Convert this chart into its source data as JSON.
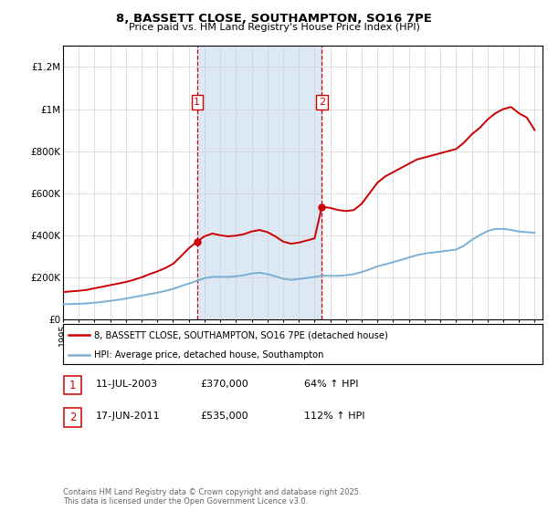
{
  "title_line1": "8, BASSETT CLOSE, SOUTHAMPTON, SO16 7PE",
  "title_line2": "Price paid vs. HM Land Registry's House Price Index (HPI)",
  "legend_line1": "8, BASSETT CLOSE, SOUTHAMPTON, SO16 7PE (detached house)",
  "legend_line2": "HPI: Average price, detached house, Southampton",
  "footnote": "Contains HM Land Registry data © Crown copyright and database right 2025.\nThis data is licensed under the Open Government Licence v3.0.",
  "transaction1_label": "1",
  "transaction1_date": "11-JUL-2003",
  "transaction1_price": "£370,000",
  "transaction1_hpi": "64% ↑ HPI",
  "transaction1_year": 2003.53,
  "transaction1_value": 370000,
  "transaction2_label": "2",
  "transaction2_date": "17-JUN-2011",
  "transaction2_price": "£535,000",
  "transaction2_hpi": "112% ↑ HPI",
  "transaction2_year": 2011.46,
  "transaction2_value": 535000,
  "property_color": "#cc0000",
  "hpi_color": "#7bafd4",
  "shaded_color": "#dce9f5",
  "transaction_vline_color": "#cc0000",
  "ylim_max": 1300000,
  "ylim_min": 0,
  "xlim_min": 1995,
  "xlim_max": 2025.5,
  "property_data_x": [
    1995.0,
    1995.5,
    1996.0,
    1996.5,
    1997.0,
    1997.5,
    1998.0,
    1998.5,
    1999.0,
    1999.5,
    2000.0,
    2000.5,
    2001.0,
    2001.5,
    2002.0,
    2002.5,
    2003.0,
    2003.53,
    2004.0,
    2004.5,
    2005.0,
    2005.5,
    2006.0,
    2006.5,
    2007.0,
    2007.5,
    2008.0,
    2008.5,
    2009.0,
    2009.5,
    2010.0,
    2010.5,
    2011.0,
    2011.46,
    2012.0,
    2012.5,
    2013.0,
    2013.5,
    2014.0,
    2014.5,
    2015.0,
    2015.5,
    2016.0,
    2016.5,
    2017.0,
    2017.5,
    2018.0,
    2018.5,
    2019.0,
    2019.5,
    2020.0,
    2020.5,
    2021.0,
    2021.5,
    2022.0,
    2022.5,
    2023.0,
    2023.5,
    2024.0,
    2024.5,
    2025.0
  ],
  "property_data_y": [
    130000,
    133000,
    136000,
    140000,
    148000,
    155000,
    163000,
    170000,
    178000,
    188000,
    200000,
    215000,
    228000,
    244000,
    264000,
    300000,
    338000,
    370000,
    395000,
    408000,
    400000,
    395000,
    398000,
    405000,
    418000,
    425000,
    415000,
    395000,
    370000,
    360000,
    365000,
    375000,
    385000,
    535000,
    530000,
    520000,
    515000,
    520000,
    550000,
    600000,
    650000,
    680000,
    700000,
    720000,
    740000,
    760000,
    770000,
    780000,
    790000,
    800000,
    810000,
    840000,
    880000,
    910000,
    950000,
    980000,
    1000000,
    1010000,
    980000,
    960000,
    900000
  ],
  "hpi_data_x": [
    1995.0,
    1995.5,
    1996.0,
    1996.5,
    1997.0,
    1997.5,
    1998.0,
    1998.5,
    1999.0,
    1999.5,
    2000.0,
    2000.5,
    2001.0,
    2001.5,
    2002.0,
    2002.5,
    2003.0,
    2003.5,
    2004.0,
    2004.5,
    2005.0,
    2005.5,
    2006.0,
    2006.5,
    2007.0,
    2007.5,
    2008.0,
    2008.5,
    2009.0,
    2009.5,
    2010.0,
    2010.5,
    2011.0,
    2011.5,
    2012.0,
    2012.5,
    2013.0,
    2013.5,
    2014.0,
    2014.5,
    2015.0,
    2015.5,
    2016.0,
    2016.5,
    2017.0,
    2017.5,
    2018.0,
    2018.5,
    2019.0,
    2019.5,
    2020.0,
    2020.5,
    2021.0,
    2021.5,
    2022.0,
    2022.5,
    2023.0,
    2023.5,
    2024.0,
    2024.5,
    2025.0
  ],
  "hpi_data_y": [
    72000,
    73000,
    74000,
    76000,
    79000,
    83000,
    88000,
    93000,
    99000,
    106000,
    113000,
    120000,
    127000,
    135000,
    145000,
    158000,
    170000,
    183000,
    196000,
    202000,
    203000,
    202000,
    205000,
    210000,
    218000,
    222000,
    215000,
    205000,
    193000,
    188000,
    192000,
    197000,
    202000,
    208000,
    207000,
    207000,
    210000,
    215000,
    225000,
    238000,
    252000,
    262000,
    272000,
    283000,
    294000,
    305000,
    313000,
    318000,
    322000,
    327000,
    332000,
    350000,
    378000,
    400000,
    420000,
    430000,
    430000,
    425000,
    418000,
    415000,
    412000
  ],
  "yticks": [
    0,
    200000,
    400000,
    600000,
    800000,
    1000000,
    1200000
  ],
  "ytick_labels": [
    "£0",
    "£200K",
    "£400K",
    "£600K",
    "£800K",
    "£1M",
    "£1.2M"
  ],
  "xticks": [
    1995,
    1996,
    1997,
    1998,
    1999,
    2000,
    2001,
    2002,
    2003,
    2004,
    2005,
    2006,
    2007,
    2008,
    2009,
    2010,
    2011,
    2012,
    2013,
    2014,
    2015,
    2016,
    2017,
    2018,
    2019,
    2020,
    2021,
    2022,
    2023,
    2024,
    2025
  ]
}
